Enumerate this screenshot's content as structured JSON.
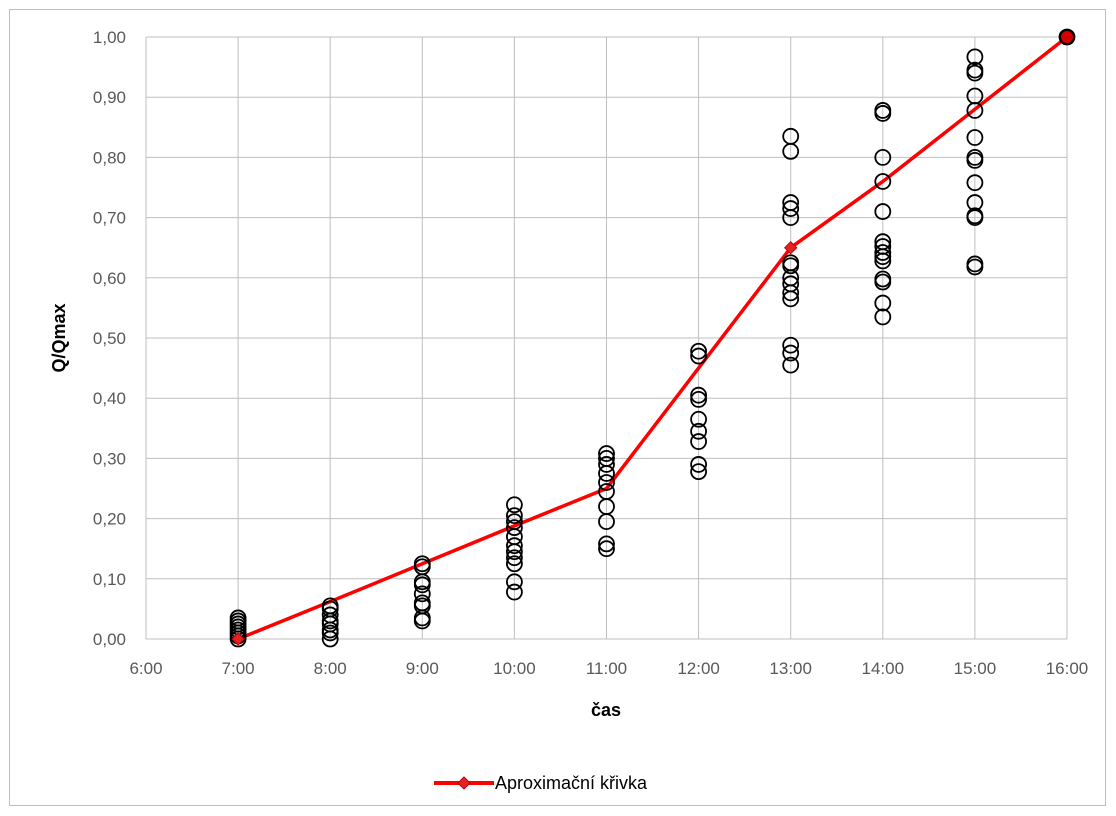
{
  "chart_data": {
    "type": "scatter",
    "xlabel": "čas",
    "ylabel": "Q/Qmax",
    "xlim": [
      6,
      16
    ],
    "ylim": [
      0,
      1
    ],
    "x_ticks": [
      "6:00",
      "7:00",
      "8:00",
      "9:00",
      "10:00",
      "11:00",
      "12:00",
      "13:00",
      "14:00",
      "15:00",
      "16:00"
    ],
    "y_ticks": [
      "0,00",
      "0,10",
      "0,20",
      "0,30",
      "0,40",
      "0,50",
      "0,60",
      "0,70",
      "0,80",
      "0,90",
      "1,00"
    ],
    "grid": true,
    "legend_position": "bottom",
    "series": [
      {
        "kind": "scatter",
        "marker": "open-circle",
        "color": "#000000",
        "points": [
          [
            7,
            0.0
          ],
          [
            7,
            0.005
          ],
          [
            7,
            0.01
          ],
          [
            7,
            0.015
          ],
          [
            7,
            0.02
          ],
          [
            7,
            0.025
          ],
          [
            7,
            0.03
          ],
          [
            7,
            0.035
          ],
          [
            8,
            0.0
          ],
          [
            8,
            0.01
          ],
          [
            8,
            0.015
          ],
          [
            8,
            0.025
          ],
          [
            8,
            0.03
          ],
          [
            8,
            0.04
          ],
          [
            8,
            0.05
          ],
          [
            8,
            0.055
          ],
          [
            9,
            0.03
          ],
          [
            9,
            0.035
          ],
          [
            9,
            0.055
          ],
          [
            9,
            0.06
          ],
          [
            9,
            0.075
          ],
          [
            9,
            0.09
          ],
          [
            9,
            0.095
          ],
          [
            9,
            0.12
          ],
          [
            9,
            0.125
          ],
          [
            10,
            0.078
          ],
          [
            10,
            0.095
          ],
          [
            10,
            0.125
          ],
          [
            10,
            0.135
          ],
          [
            10,
            0.145
          ],
          [
            10,
            0.155
          ],
          [
            10,
            0.17
          ],
          [
            10,
            0.185
          ],
          [
            10,
            0.195
          ],
          [
            10,
            0.205
          ],
          [
            10,
            0.223
          ],
          [
            11,
            0.15
          ],
          [
            11,
            0.158
          ],
          [
            11,
            0.195
          ],
          [
            11,
            0.22
          ],
          [
            11,
            0.245
          ],
          [
            11,
            0.26
          ],
          [
            11,
            0.275
          ],
          [
            11,
            0.29
          ],
          [
            11,
            0.3
          ],
          [
            11,
            0.308
          ],
          [
            12,
            0.278
          ],
          [
            12,
            0.29
          ],
          [
            12,
            0.328
          ],
          [
            12,
            0.345
          ],
          [
            12,
            0.365
          ],
          [
            12,
            0.398
          ],
          [
            12,
            0.405
          ],
          [
            12,
            0.47
          ],
          [
            12,
            0.478
          ],
          [
            13,
            0.455
          ],
          [
            13,
            0.475
          ],
          [
            13,
            0.488
          ],
          [
            13,
            0.565
          ],
          [
            13,
            0.575
          ],
          [
            13,
            0.59
          ],
          [
            13,
            0.6
          ],
          [
            13,
            0.62
          ],
          [
            13,
            0.625
          ],
          [
            13,
            0.7
          ],
          [
            13,
            0.715
          ],
          [
            13,
            0.725
          ],
          [
            13,
            0.81
          ],
          [
            13,
            0.835
          ],
          [
            14,
            0.535
          ],
          [
            14,
            0.558
          ],
          [
            14,
            0.593
          ],
          [
            14,
            0.598
          ],
          [
            14,
            0.628
          ],
          [
            14,
            0.635
          ],
          [
            14,
            0.642
          ],
          [
            14,
            0.652
          ],
          [
            14,
            0.66
          ],
          [
            14,
            0.71
          ],
          [
            14,
            0.76
          ],
          [
            14,
            0.8
          ],
          [
            14,
            0.873
          ],
          [
            14,
            0.878
          ],
          [
            15,
            0.618
          ],
          [
            15,
            0.623
          ],
          [
            15,
            0.7
          ],
          [
            15,
            0.703
          ],
          [
            15,
            0.725
          ],
          [
            15,
            0.758
          ],
          [
            15,
            0.795
          ],
          [
            15,
            0.8
          ],
          [
            15,
            0.833
          ],
          [
            15,
            0.878
          ],
          [
            15,
            0.902
          ],
          [
            15,
            0.94
          ],
          [
            15,
            0.945
          ],
          [
            15,
            0.967
          ],
          [
            16,
            1.0
          ]
        ]
      },
      {
        "kind": "line",
        "name": "Aproximační křivka",
        "color": "#ff0000",
        "marker": "diamond",
        "x": [
          7,
          8,
          9,
          10,
          11,
          12,
          13,
          14,
          15,
          16
        ],
        "y": [
          0.0,
          0.062,
          0.125,
          0.188,
          0.25,
          0.45,
          0.65,
          0.76,
          0.88,
          1.0
        ],
        "marker_points": [
          [
            7,
            0.0
          ],
          [
            13,
            0.65
          ],
          [
            16,
            1.0
          ]
        ]
      }
    ]
  }
}
